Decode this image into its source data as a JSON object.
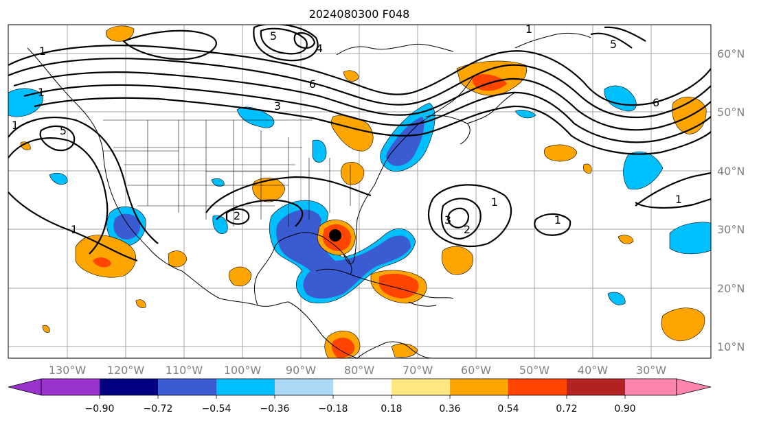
{
  "title": "2024080300 F048",
  "map": {
    "lon_labels": [
      "130°W",
      "120°W",
      "110°W",
      "100°W",
      "90°W",
      "80°W",
      "70°W",
      "60°W",
      "50°W",
      "40°W",
      "30°W"
    ],
    "lat_labels": [
      "60°N",
      "50°N",
      "40°N",
      "30°N",
      "20°N",
      "10°N"
    ],
    "contour_labels": [
      "1",
      "1",
      "1",
      "1",
      "1",
      "1",
      "1",
      "1",
      "2",
      "2",
      "3",
      "3",
      "4",
      "5",
      "5",
      "5",
      "6",
      "6"
    ],
    "storm_marker": "storm-center-marker"
  },
  "colorbar": {
    "tick_labels": [
      "−0.90",
      "−0.72",
      "−0.54",
      "−0.36",
      "−0.18",
      "0.18",
      "0.36",
      "0.54",
      "0.72",
      "0.90"
    ],
    "colors": [
      "#9933cc",
      "#000080",
      "#3a5bd1",
      "#00bfff",
      "#add8f5",
      "#ffffff",
      "#ffe680",
      "#ffa500",
      "#ff4500",
      "#b22222",
      "#ff85b0"
    ]
  }
}
